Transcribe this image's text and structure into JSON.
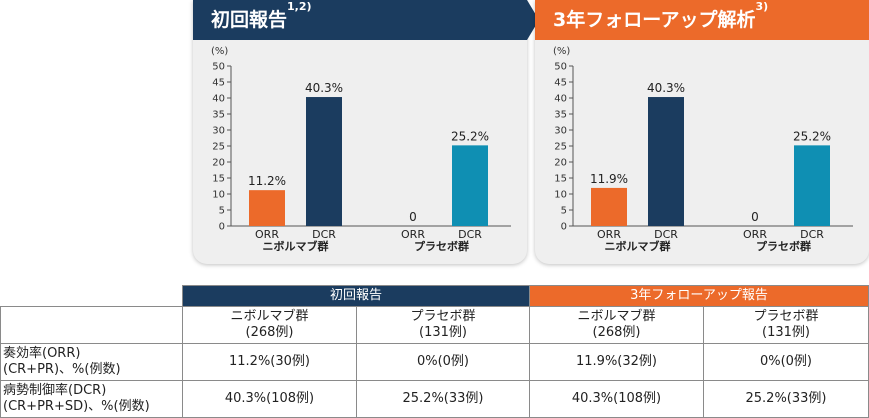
{
  "panels": [
    {
      "title": "初回報告",
      "sup": "1,2)",
      "color": "#1b3c5f"
    },
    {
      "title": "3年フォローアップ解析",
      "sup": "3)",
      "color": "#ec6a2a"
    }
  ],
  "colors": {
    "orr": "#ec6a2a",
    "dcr_nivo": "#1b3c5f",
    "dcr_placebo": "#0f8fb3"
  },
  "chart_data": [
    {
      "type": "bar",
      "title": "初回報告",
      "ylabel": "(%)",
      "ylim": [
        0,
        50
      ],
      "yticks": [
        0,
        5,
        10,
        15,
        20,
        25,
        30,
        35,
        40,
        45,
        50
      ],
      "groups": [
        {
          "name": "ニボルマブ群",
          "categories": [
            "ORR",
            "DCR"
          ],
          "values": [
            11.2,
            40.3
          ],
          "labels": [
            "11.2%",
            "40.3%"
          ]
        },
        {
          "name": "プラセボ群",
          "categories": [
            "ORR",
            "DCR"
          ],
          "values": [
            0,
            25.2
          ],
          "labels": [
            "0",
            "25.2%"
          ]
        }
      ]
    },
    {
      "type": "bar",
      "title": "3年フォローアップ解析",
      "ylabel": "(%)",
      "ylim": [
        0,
        50
      ],
      "yticks": [
        0,
        5,
        10,
        15,
        20,
        25,
        30,
        35,
        40,
        45,
        50
      ],
      "groups": [
        {
          "name": "ニボルマブ群",
          "categories": [
            "ORR",
            "DCR"
          ],
          "values": [
            11.9,
            40.3
          ],
          "labels": [
            "11.9%",
            "40.3%"
          ]
        },
        {
          "name": "プラセボ群",
          "categories": [
            "ORR",
            "DCR"
          ],
          "values": [
            0,
            25.2
          ],
          "labels": [
            "0",
            "25.2%"
          ]
        }
      ]
    }
  ],
  "table": {
    "header1": [
      "初回報告",
      "3年フォローアップ報告"
    ],
    "header2": [
      {
        "name": "ニボルマブ群",
        "n": "(268例)"
      },
      {
        "name": "プラセボ群",
        "n": "(131例)"
      },
      {
        "name": "ニボルマブ群",
        "n": "(268例)"
      },
      {
        "name": "プラセボ群",
        "n": "(131例)"
      }
    ],
    "rows": [
      {
        "label1": "奏効率(ORR)",
        "label2": "(CR+PR)、%(例数)",
        "cells": [
          "11.2%(30例)",
          "0%(0例)",
          "11.9%(32例)",
          "0%(0例)"
        ]
      },
      {
        "label1": "病勢制御率(DCR)",
        "label2": "(CR+PR+SD)、%(例数)",
        "cells": [
          "40.3%(108例)",
          "25.2%(33例)",
          "40.3%(108例)",
          "25.2%(33例)"
        ]
      }
    ]
  }
}
